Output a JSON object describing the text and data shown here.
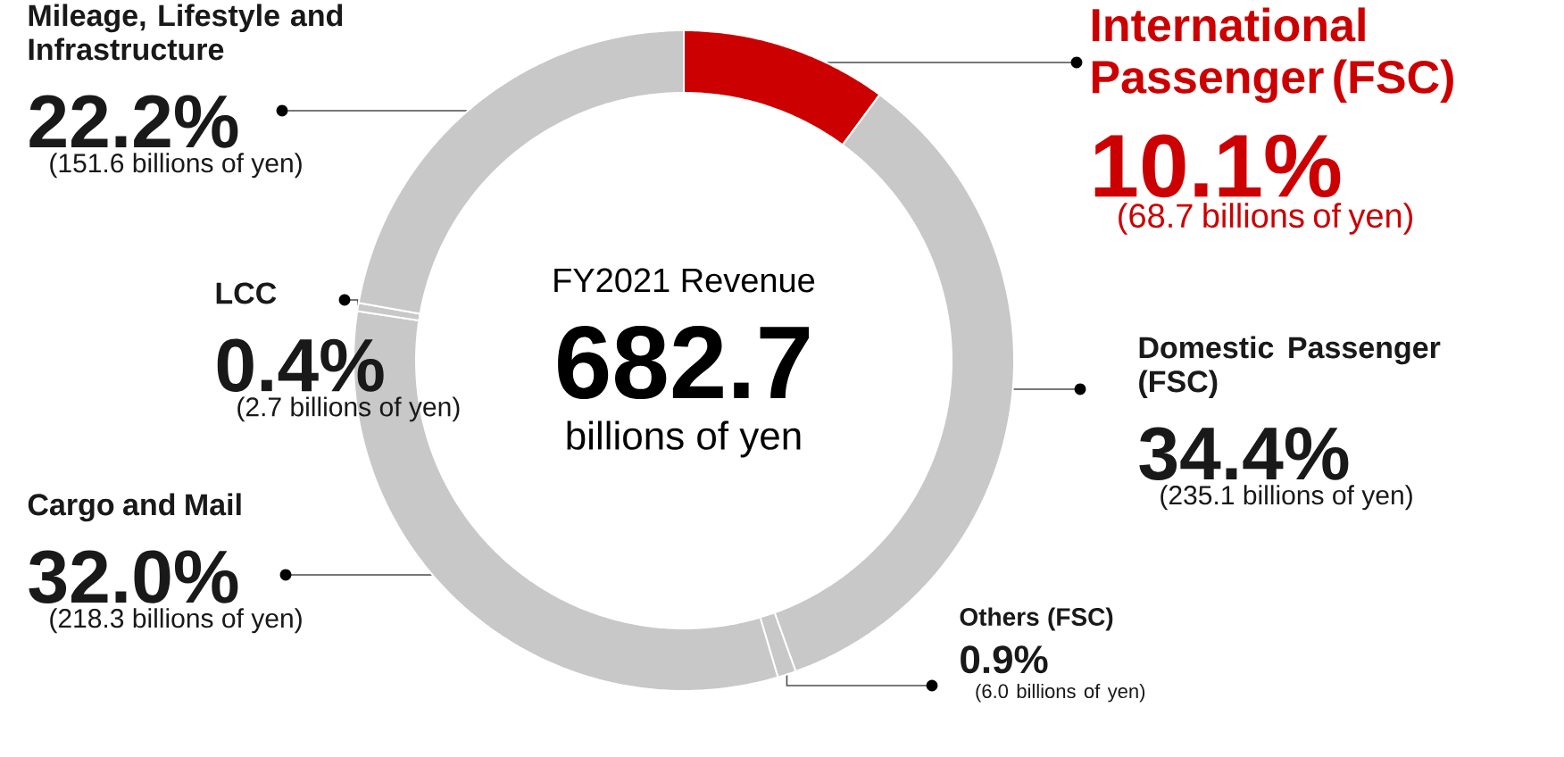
{
  "chart_data": {
    "type": "donut",
    "title": "FY2021 Revenue",
    "categories": [
      "International Passenger (FSC)",
      "Domestic Passenger (FSC)",
      "Others (FSC)",
      "Cargo and Mail",
      "LCC",
      "Mileage, Lifestyle and Infrastructure"
    ],
    "values": [
      10.1,
      34.4,
      0.9,
      32.0,
      0.4,
      22.2
    ],
    "colors": [
      "#cc0000",
      "#c8c8c8",
      "#c8c8c8",
      "#c8c8c8",
      "#c8c8c8",
      "#c8c8c8"
    ],
    "value_labels": [
      "10.1%",
      "34.4%",
      "0.9%",
      "32.0%",
      "0.4%",
      "22.2%"
    ],
    "annotations": [
      "682.7",
      "billions of yen",
      "(68.7 billions of  yen)",
      "(235.1 billions of yen)",
      "(6.0 billions of yen)",
      "(218.3 billions of yen)",
      "(2.7 billions of yen)",
      "(151.6 billions of yen)"
    ]
  }
}
